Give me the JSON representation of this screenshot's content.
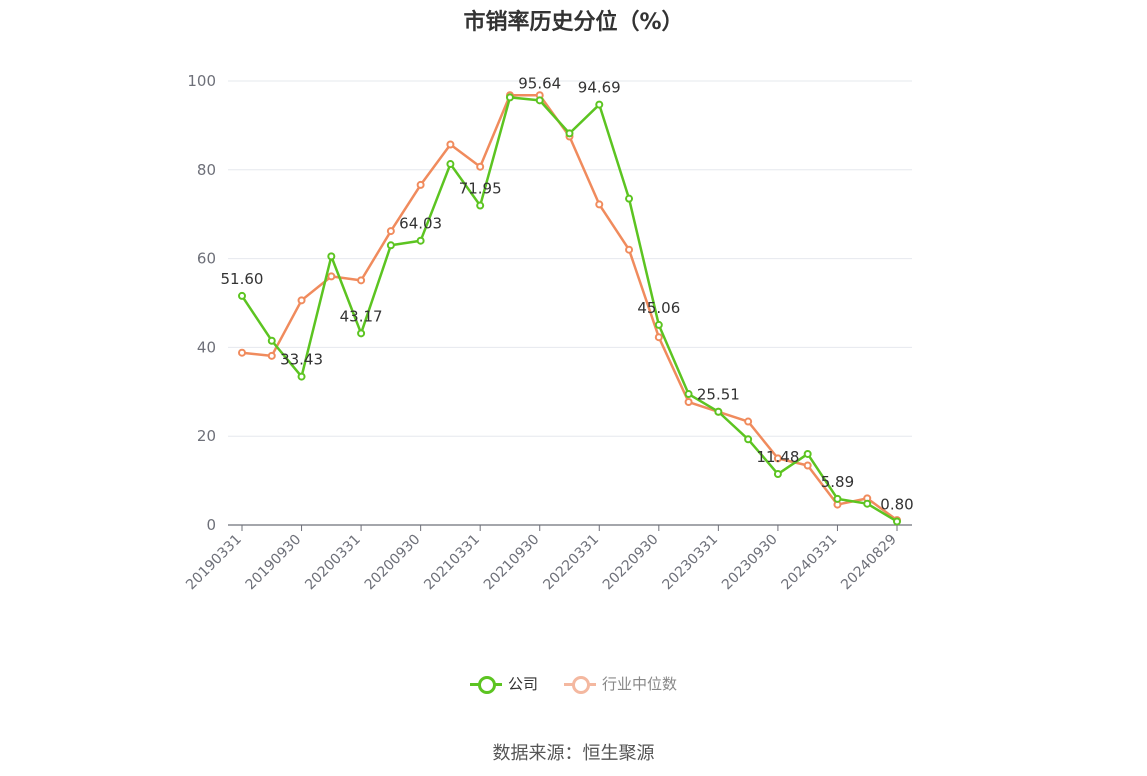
{
  "title": "市销率历史分位（%）",
  "source": "数据来源：恒生聚源",
  "colors": {
    "company": "#5cc421",
    "industry": "#f08b5d",
    "industry_legend": "#f4b8a0",
    "grid": "#e6e8ee",
    "axis": "#6e7079"
  },
  "chart_data": {
    "type": "line",
    "title": "市销率历史分位（%）",
    "xlabel": "",
    "ylabel": "",
    "ylim": [
      0,
      100
    ],
    "yticks": [
      0,
      20,
      40,
      60,
      80,
      100
    ],
    "x": [
      "20190331",
      "20190630",
      "20190930",
      "20191231",
      "20200331",
      "20200630",
      "20200930",
      "20201231",
      "20210331",
      "20210630",
      "20210930",
      "20211231",
      "20220331",
      "20220630",
      "20220930",
      "20221231",
      "20230331",
      "20230630",
      "20230930",
      "20231231",
      "20240331",
      "20240630",
      "20240829"
    ],
    "xtick_labels": [
      "20190331",
      "20190930",
      "20200331",
      "20200930",
      "20210331",
      "20210930",
      "20220331",
      "20220930",
      "20230331",
      "20230930",
      "20240331",
      "20240829"
    ],
    "grid": true,
    "legend_position": "bottom",
    "series": [
      {
        "name": "公司",
        "values": [
          51.6,
          41.5,
          33.43,
          60.5,
          43.17,
          63.0,
          64.03,
          81.3,
          71.95,
          96.3,
          95.64,
          88.2,
          94.69,
          73.5,
          45.06,
          29.5,
          25.51,
          19.3,
          11.48,
          16.0,
          5.89,
          4.8,
          0.8
        ],
        "labels": [
          "51.60",
          "",
          "33.43",
          "",
          "43.17",
          "",
          "64.03",
          "",
          "71.95",
          "",
          "95.64",
          "",
          "94.69",
          "",
          "45.06",
          "",
          "25.51",
          "",
          "11.48",
          "",
          "5.89",
          "",
          "0.80"
        ]
      },
      {
        "name": "行业中位数",
        "values": [
          38.8,
          38.1,
          50.6,
          56.0,
          55.1,
          66.2,
          76.6,
          85.7,
          80.7,
          96.8,
          96.8,
          87.5,
          72.2,
          62.0,
          42.3,
          27.7,
          25.5,
          23.3,
          15.0,
          13.4,
          4.6,
          6.0,
          1.1
        ]
      }
    ]
  }
}
